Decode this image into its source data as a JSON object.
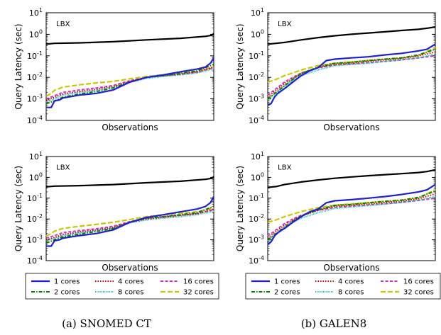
{
  "chart_data": [
    {
      "type": "line",
      "panel": "SNOMED CT top",
      "xlabel": "Observations",
      "ylabel": "Query Latency (sec)",
      "yscale": "log",
      "ylim": [
        0.0001,
        10
      ],
      "yticks": [
        "10^1",
        "10^0",
        "10^-1",
        "10^-2",
        "10^-3",
        "10^-4"
      ],
      "annotation": {
        "text": "LBX",
        "x": 0.06,
        "y": 0.9
      },
      "series": [
        {
          "name": "LBX",
          "x": [
            0,
            0.05,
            0.2,
            0.4,
            0.6,
            0.8,
            0.95,
            0.99,
            1
          ],
          "values": [
            0.35,
            0.38,
            0.4,
            0.45,
            0.55,
            0.65,
            0.8,
            0.9,
            1.1
          ]
        },
        {
          "name": "1 cores",
          "x": [
            0,
            0.03,
            0.05,
            0.08,
            0.1,
            0.2,
            0.3,
            0.4,
            0.5,
            0.6,
            0.7,
            0.8,
            0.9,
            0.95,
            0.98,
            1
          ],
          "values": [
            0.0004,
            0.0004,
            0.0008,
            0.0009,
            0.0011,
            0.0015,
            0.0018,
            0.0026,
            0.006,
            0.01,
            0.013,
            0.018,
            0.024,
            0.03,
            0.045,
            0.08
          ]
        },
        {
          "name": "2 cores",
          "x": [
            0,
            0.05,
            0.1,
            0.2,
            0.3,
            0.4,
            0.5,
            0.6,
            0.7,
            0.8,
            0.9,
            1
          ],
          "values": [
            0.0006,
            0.0008,
            0.0012,
            0.0017,
            0.0022,
            0.0032,
            0.006,
            0.01,
            0.012,
            0.015,
            0.02,
            0.04
          ]
        },
        {
          "name": "4 cores",
          "x": [
            0,
            0.05,
            0.1,
            0.2,
            0.3,
            0.4,
            0.5,
            0.6,
            0.7,
            0.8,
            0.9,
            1
          ],
          "values": [
            0.0008,
            0.0012,
            0.0017,
            0.0022,
            0.0028,
            0.0038,
            0.0065,
            0.01,
            0.012,
            0.014,
            0.018,
            0.03
          ]
        },
        {
          "name": "8 cores",
          "x": [
            0,
            0.05,
            0.1,
            0.2,
            0.3,
            0.4,
            0.5,
            0.6,
            0.7,
            0.8,
            0.9,
            1
          ],
          "values": [
            0.0007,
            0.001,
            0.0015,
            0.002,
            0.0025,
            0.0035,
            0.006,
            0.009,
            0.011,
            0.013,
            0.016,
            0.025
          ]
        },
        {
          "name": "16 cores",
          "x": [
            0,
            0.05,
            0.1,
            0.2,
            0.3,
            0.4,
            0.5,
            0.6,
            0.7,
            0.8,
            0.9,
            1
          ],
          "values": [
            0.001,
            0.0014,
            0.002,
            0.0026,
            0.0032,
            0.0042,
            0.007,
            0.01,
            0.012,
            0.014,
            0.017,
            0.028
          ]
        },
        {
          "name": "32 cores",
          "x": [
            0,
            0.03,
            0.05,
            0.1,
            0.2,
            0.3,
            0.4,
            0.5,
            0.6,
            0.7,
            0.8,
            0.9,
            1
          ],
          "values": [
            0.0013,
            0.0018,
            0.0025,
            0.0035,
            0.0045,
            0.0055,
            0.0065,
            0.0085,
            0.011,
            0.013,
            0.016,
            0.019,
            0.03
          ]
        }
      ]
    },
    {
      "type": "line",
      "panel": "GALEN8 top",
      "xlabel": "Observations",
      "ylabel": "Query Latency (sec)",
      "yscale": "log",
      "ylim": [
        0.0001,
        10
      ],
      "yticks": [
        "10^1",
        "10^0",
        "10^-1",
        "10^-2",
        "10^-3",
        "10^-4"
      ],
      "annotation": {
        "text": "LBX",
        "x": 0.06,
        "y": 0.9
      },
      "series": [
        {
          "name": "LBX",
          "x": [
            0,
            0.05,
            0.1,
            0.2,
            0.3,
            0.4,
            0.5,
            0.6,
            0.7,
            0.8,
            0.9,
            0.95,
            1
          ],
          "values": [
            0.35,
            0.38,
            0.42,
            0.55,
            0.7,
            0.85,
            1.0,
            1.15,
            1.3,
            1.5,
            1.7,
            1.9,
            2.2
          ]
        },
        {
          "name": "1 cores",
          "x": [
            0,
            0.02,
            0.04,
            0.06,
            0.1,
            0.15,
            0.2,
            0.25,
            0.3,
            0.35,
            0.4,
            0.5,
            0.6,
            0.7,
            0.8,
            0.9,
            0.95,
            1
          ],
          "values": [
            0.0005,
            0.0006,
            0.0012,
            0.0018,
            0.003,
            0.006,
            0.012,
            0.02,
            0.028,
            0.06,
            0.07,
            0.08,
            0.09,
            0.11,
            0.13,
            0.17,
            0.2,
            0.35
          ]
        },
        {
          "name": "2 cores",
          "x": [
            0,
            0.05,
            0.1,
            0.15,
            0.2,
            0.3,
            0.4,
            0.5,
            0.6,
            0.7,
            0.8,
            0.9,
            1
          ],
          "values": [
            0.001,
            0.002,
            0.004,
            0.008,
            0.015,
            0.03,
            0.045,
            0.05,
            0.06,
            0.07,
            0.08,
            0.11,
            0.2
          ]
        },
        {
          "name": "4 cores",
          "x": [
            0,
            0.05,
            0.1,
            0.15,
            0.2,
            0.3,
            0.4,
            0.5,
            0.6,
            0.7,
            0.8,
            0.9,
            1
          ],
          "values": [
            0.0012,
            0.0025,
            0.005,
            0.009,
            0.015,
            0.028,
            0.04,
            0.045,
            0.055,
            0.065,
            0.075,
            0.1,
            0.15
          ]
        },
        {
          "name": "8 cores",
          "x": [
            0,
            0.05,
            0.1,
            0.15,
            0.2,
            0.3,
            0.4,
            0.5,
            0.6,
            0.7,
            0.8,
            0.9,
            1
          ],
          "values": [
            0.0009,
            0.0018,
            0.004,
            0.007,
            0.012,
            0.022,
            0.035,
            0.04,
            0.045,
            0.055,
            0.065,
            0.08,
            0.12
          ]
        },
        {
          "name": "16 cores",
          "x": [
            0,
            0.05,
            0.1,
            0.15,
            0.2,
            0.3,
            0.4,
            0.5,
            0.6,
            0.7,
            0.8,
            0.9,
            1
          ],
          "values": [
            0.0015,
            0.003,
            0.006,
            0.01,
            0.016,
            0.028,
            0.038,
            0.042,
            0.048,
            0.055,
            0.065,
            0.08,
            0.1
          ]
        },
        {
          "name": "32 cores",
          "x": [
            0,
            0.05,
            0.1,
            0.15,
            0.2,
            0.3,
            0.4,
            0.5,
            0.6,
            0.7,
            0.8,
            0.9,
            1
          ],
          "values": [
            0.006,
            0.008,
            0.012,
            0.016,
            0.022,
            0.035,
            0.045,
            0.052,
            0.06,
            0.07,
            0.08,
            0.1,
            0.25
          ]
        }
      ]
    },
    {
      "type": "line",
      "panel": "SNOMED CT bottom",
      "xlabel": "Observations",
      "ylabel": "Query Latency (sec)",
      "yscale": "log",
      "ylim": [
        0.0001,
        10
      ],
      "yticks": [
        "10^1",
        "10^0",
        "10^-1",
        "10^-2",
        "10^-3",
        "10^-4"
      ],
      "annotation": {
        "text": "LBX",
        "x": 0.06,
        "y": 0.9
      },
      "series": [
        {
          "name": "LBX",
          "x": [
            0,
            0.05,
            0.2,
            0.4,
            0.6,
            0.8,
            0.95,
            0.99,
            1
          ],
          "values": [
            0.35,
            0.38,
            0.4,
            0.45,
            0.55,
            0.65,
            0.8,
            0.9,
            1.1
          ]
        },
        {
          "name": "1 cores",
          "x": [
            0,
            0.03,
            0.05,
            0.08,
            0.1,
            0.2,
            0.3,
            0.4,
            0.5,
            0.6,
            0.7,
            0.8,
            0.9,
            0.95,
            0.98,
            1
          ],
          "values": [
            0.0005,
            0.0005,
            0.0009,
            0.001,
            0.0012,
            0.0016,
            0.002,
            0.003,
            0.007,
            0.012,
            0.016,
            0.022,
            0.03,
            0.04,
            0.06,
            0.12
          ]
        },
        {
          "name": "2 cores",
          "x": [
            0,
            0.05,
            0.1,
            0.2,
            0.3,
            0.4,
            0.5,
            0.6,
            0.7,
            0.8,
            0.9,
            1
          ],
          "values": [
            0.0007,
            0.001,
            0.0014,
            0.0019,
            0.0025,
            0.0035,
            0.007,
            0.011,
            0.013,
            0.016,
            0.02,
            0.04
          ]
        },
        {
          "name": "4 cores",
          "x": [
            0,
            0.05,
            0.1,
            0.2,
            0.3,
            0.4,
            0.5,
            0.6,
            0.7,
            0.8,
            0.9,
            1
          ],
          "values": [
            0.001,
            0.0013,
            0.0018,
            0.0024,
            0.003,
            0.004,
            0.007,
            0.01,
            0.012,
            0.015,
            0.018,
            0.03
          ]
        },
        {
          "name": "8 cores",
          "x": [
            0,
            0.05,
            0.1,
            0.2,
            0.3,
            0.4,
            0.5,
            0.6,
            0.7,
            0.8,
            0.9,
            1
          ],
          "values": [
            0.0009,
            0.0012,
            0.0016,
            0.0022,
            0.0028,
            0.0037,
            0.0065,
            0.009,
            0.011,
            0.013,
            0.016,
            0.024
          ]
        },
        {
          "name": "16 cores",
          "x": [
            0,
            0.05,
            0.1,
            0.2,
            0.3,
            0.4,
            0.5,
            0.6,
            0.7,
            0.8,
            0.9,
            1
          ],
          "values": [
            0.0012,
            0.0016,
            0.0022,
            0.0028,
            0.0034,
            0.0045,
            0.0075,
            0.011,
            0.013,
            0.015,
            0.018,
            0.028
          ]
        },
        {
          "name": "32 cores",
          "x": [
            0,
            0.03,
            0.05,
            0.1,
            0.2,
            0.3,
            0.4,
            0.5,
            0.6,
            0.7,
            0.8,
            0.9,
            1
          ],
          "values": [
            0.0015,
            0.002,
            0.0026,
            0.0035,
            0.0045,
            0.0055,
            0.007,
            0.0095,
            0.013,
            0.016,
            0.019,
            0.022,
            0.035
          ]
        }
      ]
    },
    {
      "type": "line",
      "panel": "GALEN8 bottom",
      "xlabel": "Observations",
      "ylabel": "Query Latency (sec)",
      "yscale": "log",
      "ylim": [
        0.0001,
        10
      ],
      "yticks": [
        "10^1",
        "10^0",
        "10^-1",
        "10^-2",
        "10^-3",
        "10^-4"
      ],
      "annotation": {
        "text": "LBX",
        "x": 0.06,
        "y": 0.9
      },
      "series": [
        {
          "name": "LBX",
          "x": [
            0,
            0.05,
            0.1,
            0.2,
            0.3,
            0.4,
            0.5,
            0.6,
            0.7,
            0.8,
            0.9,
            0.95,
            1
          ],
          "values": [
            0.33,
            0.36,
            0.45,
            0.6,
            0.75,
            0.9,
            1.05,
            1.2,
            1.35,
            1.5,
            1.7,
            1.9,
            2.3
          ]
        },
        {
          "name": "1 cores",
          "x": [
            0,
            0.02,
            0.04,
            0.06,
            0.1,
            0.15,
            0.2,
            0.25,
            0.3,
            0.35,
            0.4,
            0.5,
            0.6,
            0.7,
            0.8,
            0.9,
            0.95,
            1
          ],
          "values": [
            0.0006,
            0.0008,
            0.0015,
            0.0022,
            0.0035,
            0.007,
            0.013,
            0.022,
            0.03,
            0.06,
            0.075,
            0.085,
            0.1,
            0.12,
            0.15,
            0.2,
            0.25,
            0.45
          ]
        },
        {
          "name": "2 cores",
          "x": [
            0,
            0.05,
            0.1,
            0.15,
            0.2,
            0.3,
            0.4,
            0.5,
            0.6,
            0.7,
            0.8,
            0.9,
            1
          ],
          "values": [
            0.001,
            0.002,
            0.004,
            0.008,
            0.014,
            0.028,
            0.045,
            0.05,
            0.06,
            0.07,
            0.08,
            0.11,
            0.22
          ]
        },
        {
          "name": "4 cores",
          "x": [
            0,
            0.05,
            0.1,
            0.15,
            0.2,
            0.3,
            0.4,
            0.5,
            0.6,
            0.7,
            0.8,
            0.9,
            1
          ],
          "values": [
            0.0012,
            0.0025,
            0.005,
            0.009,
            0.014,
            0.026,
            0.04,
            0.045,
            0.052,
            0.062,
            0.072,
            0.095,
            0.16
          ]
        },
        {
          "name": "8 cores",
          "x": [
            0,
            0.05,
            0.1,
            0.15,
            0.2,
            0.3,
            0.4,
            0.5,
            0.6,
            0.7,
            0.8,
            0.9,
            1
          ],
          "values": [
            0.0009,
            0.0018,
            0.0038,
            0.007,
            0.011,
            0.02,
            0.032,
            0.038,
            0.044,
            0.052,
            0.062,
            0.08,
            0.12
          ]
        },
        {
          "name": "16 cores",
          "x": [
            0,
            0.05,
            0.1,
            0.15,
            0.2,
            0.3,
            0.4,
            0.5,
            0.6,
            0.7,
            0.8,
            0.9,
            1
          ],
          "values": [
            0.0015,
            0.003,
            0.006,
            0.01,
            0.015,
            0.026,
            0.036,
            0.041,
            0.047,
            0.054,
            0.063,
            0.078,
            0.1
          ]
        },
        {
          "name": "32 cores",
          "x": [
            0,
            0.05,
            0.1,
            0.15,
            0.2,
            0.3,
            0.4,
            0.5,
            0.6,
            0.7,
            0.8,
            0.9,
            1
          ],
          "values": [
            0.007,
            0.009,
            0.013,
            0.017,
            0.023,
            0.035,
            0.046,
            0.053,
            0.061,
            0.071,
            0.082,
            0.1,
            0.26
          ]
        }
      ]
    }
  ],
  "legends": [
    {
      "items": [
        "1 cores",
        "4 cores",
        "16 cores",
        "2 cores",
        "8 cores",
        "32 cores"
      ],
      "placement": "below-plot"
    },
    {
      "items": [
        "1 cores",
        "4 cores",
        "16 cores",
        "2 cores",
        "8 cores",
        "32 cores"
      ],
      "placement": "below-plot"
    }
  ],
  "series_styles": {
    "LBX": {
      "color": "#000000",
      "dash": "",
      "width": 2.2
    },
    "1 cores": {
      "color": "#1f1fd6",
      "dash": "",
      "width": 2.2
    },
    "2 cores": {
      "color": "#008000",
      "dash": "5,2,1.5,2",
      "width": 2
    },
    "4 cores": {
      "color": "#e00000",
      "dash": "1.5,2",
      "width": 2
    },
    "8 cores": {
      "color": "#00bfbf",
      "dash": "1,1.2",
      "width": 2
    },
    "16 cores": {
      "color": "#cc33cc",
      "dash": "4,2.5",
      "width": 2
    },
    "32 cores": {
      "color": "#c8c800",
      "dash": "7,3",
      "width": 2.2
    }
  },
  "captions": [
    "(a) SNOMED CT",
    "(b) GALEN8"
  ]
}
